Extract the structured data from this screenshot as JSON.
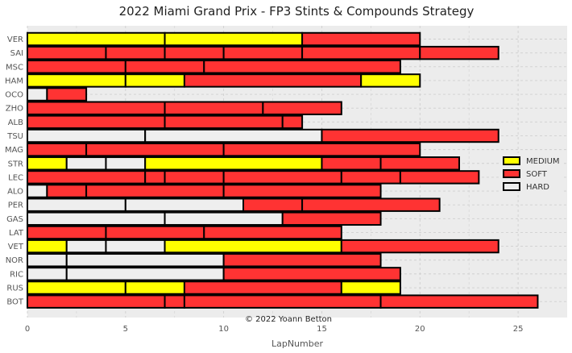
{
  "chart_data": {
    "type": "bar",
    "orientation": "horizontal",
    "stacked": true,
    "title": "2022 Miami Grand Prix - FP3 Stints & Compounds Strategy",
    "xlabel": "LapNumber",
    "ylabel": "",
    "xlim": [
      0,
      27.5
    ],
    "xticks": [
      0,
      5,
      10,
      15,
      20,
      25
    ],
    "grid": true,
    "legend_position": "right",
    "credit": "© 2022 Yoann Betton",
    "compounds": [
      {
        "name": "MEDIUM",
        "color": "#ffff00"
      },
      {
        "name": "SOFT",
        "color": "#ff3333"
      },
      {
        "name": "HARD",
        "color": "#eeeeee"
      }
    ],
    "drivers": [
      {
        "driver": "VER",
        "stints": [
          {
            "compound": "MEDIUM",
            "laps": 7
          },
          {
            "compound": "MEDIUM",
            "laps": 7
          },
          {
            "compound": "SOFT",
            "laps": 6
          }
        ]
      },
      {
        "driver": "SAI",
        "stints": [
          {
            "compound": "SOFT",
            "laps": 4
          },
          {
            "compound": "SOFT",
            "laps": 3
          },
          {
            "compound": "SOFT",
            "laps": 3
          },
          {
            "compound": "SOFT",
            "laps": 4
          },
          {
            "compound": "SOFT",
            "laps": 6
          },
          {
            "compound": "SOFT",
            "laps": 4
          }
        ]
      },
      {
        "driver": "MSC",
        "stints": [
          {
            "compound": "SOFT",
            "laps": 5
          },
          {
            "compound": "SOFT",
            "laps": 4
          },
          {
            "compound": "SOFT",
            "laps": 10
          }
        ]
      },
      {
        "driver": "HAM",
        "stints": [
          {
            "compound": "MEDIUM",
            "laps": 5
          },
          {
            "compound": "MEDIUM",
            "laps": 3
          },
          {
            "compound": "SOFT",
            "laps": 9
          },
          {
            "compound": "MEDIUM",
            "laps": 3
          }
        ]
      },
      {
        "driver": "OCO",
        "stints": [
          {
            "compound": "HARD",
            "laps": 1
          },
          {
            "compound": "SOFT",
            "laps": 2
          }
        ]
      },
      {
        "driver": "ZHO",
        "stints": [
          {
            "compound": "SOFT",
            "laps": 7
          },
          {
            "compound": "SOFT",
            "laps": 5
          },
          {
            "compound": "SOFT",
            "laps": 4
          }
        ]
      },
      {
        "driver": "ALB",
        "stints": [
          {
            "compound": "SOFT",
            "laps": 7
          },
          {
            "compound": "SOFT",
            "laps": 6
          },
          {
            "compound": "SOFT",
            "laps": 1
          }
        ]
      },
      {
        "driver": "TSU",
        "stints": [
          {
            "compound": "HARD",
            "laps": 6
          },
          {
            "compound": "HARD",
            "laps": 9
          },
          {
            "compound": "SOFT",
            "laps": 9
          }
        ]
      },
      {
        "driver": "MAG",
        "stints": [
          {
            "compound": "SOFT",
            "laps": 3
          },
          {
            "compound": "SOFT",
            "laps": 7
          },
          {
            "compound": "SOFT",
            "laps": 10
          }
        ]
      },
      {
        "driver": "STR",
        "stints": [
          {
            "compound": "MEDIUM",
            "laps": 2
          },
          {
            "compound": "HARD",
            "laps": 2
          },
          {
            "compound": "HARD",
            "laps": 2
          },
          {
            "compound": "MEDIUM",
            "laps": 9
          },
          {
            "compound": "SOFT",
            "laps": 3
          },
          {
            "compound": "SOFT",
            "laps": 4
          }
        ]
      },
      {
        "driver": "LEC",
        "stints": [
          {
            "compound": "SOFT",
            "laps": 6
          },
          {
            "compound": "SOFT",
            "laps": 1
          },
          {
            "compound": "SOFT",
            "laps": 3
          },
          {
            "compound": "SOFT",
            "laps": 6
          },
          {
            "compound": "SOFT",
            "laps": 3
          },
          {
            "compound": "SOFT",
            "laps": 4
          }
        ]
      },
      {
        "driver": "ALO",
        "stints": [
          {
            "compound": "HARD",
            "laps": 1
          },
          {
            "compound": "SOFT",
            "laps": 2
          },
          {
            "compound": "SOFT",
            "laps": 7
          },
          {
            "compound": "SOFT",
            "laps": 8
          }
        ]
      },
      {
        "driver": "PER",
        "stints": [
          {
            "compound": "HARD",
            "laps": 5
          },
          {
            "compound": "HARD",
            "laps": 6
          },
          {
            "compound": "SOFT",
            "laps": 3
          },
          {
            "compound": "SOFT",
            "laps": 7
          }
        ]
      },
      {
        "driver": "GAS",
        "stints": [
          {
            "compound": "HARD",
            "laps": 7
          },
          {
            "compound": "HARD",
            "laps": 6
          },
          {
            "compound": "SOFT",
            "laps": 5
          }
        ]
      },
      {
        "driver": "LAT",
        "stints": [
          {
            "compound": "SOFT",
            "laps": 4
          },
          {
            "compound": "SOFT",
            "laps": 5
          },
          {
            "compound": "SOFT",
            "laps": 7
          }
        ]
      },
      {
        "driver": "VET",
        "stints": [
          {
            "compound": "MEDIUM",
            "laps": 2
          },
          {
            "compound": "HARD",
            "laps": 2
          },
          {
            "compound": "HARD",
            "laps": 3
          },
          {
            "compound": "MEDIUM",
            "laps": 9
          },
          {
            "compound": "SOFT",
            "laps": 8
          }
        ]
      },
      {
        "driver": "NOR",
        "stints": [
          {
            "compound": "HARD",
            "laps": 2
          },
          {
            "compound": "HARD",
            "laps": 8
          },
          {
            "compound": "SOFT",
            "laps": 8
          }
        ]
      },
      {
        "driver": "RIC",
        "stints": [
          {
            "compound": "HARD",
            "laps": 2
          },
          {
            "compound": "HARD",
            "laps": 8
          },
          {
            "compound": "SOFT",
            "laps": 9
          }
        ]
      },
      {
        "driver": "RUS",
        "stints": [
          {
            "compound": "MEDIUM",
            "laps": 5
          },
          {
            "compound": "MEDIUM",
            "laps": 3
          },
          {
            "compound": "SOFT",
            "laps": 8
          },
          {
            "compound": "MEDIUM",
            "laps": 3
          }
        ]
      },
      {
        "driver": "BOT",
        "stints": [
          {
            "compound": "SOFT",
            "laps": 7
          },
          {
            "compound": "SOFT",
            "laps": 1
          },
          {
            "compound": "SOFT",
            "laps": 10
          },
          {
            "compound": "SOFT",
            "laps": 8
          }
        ]
      }
    ]
  }
}
